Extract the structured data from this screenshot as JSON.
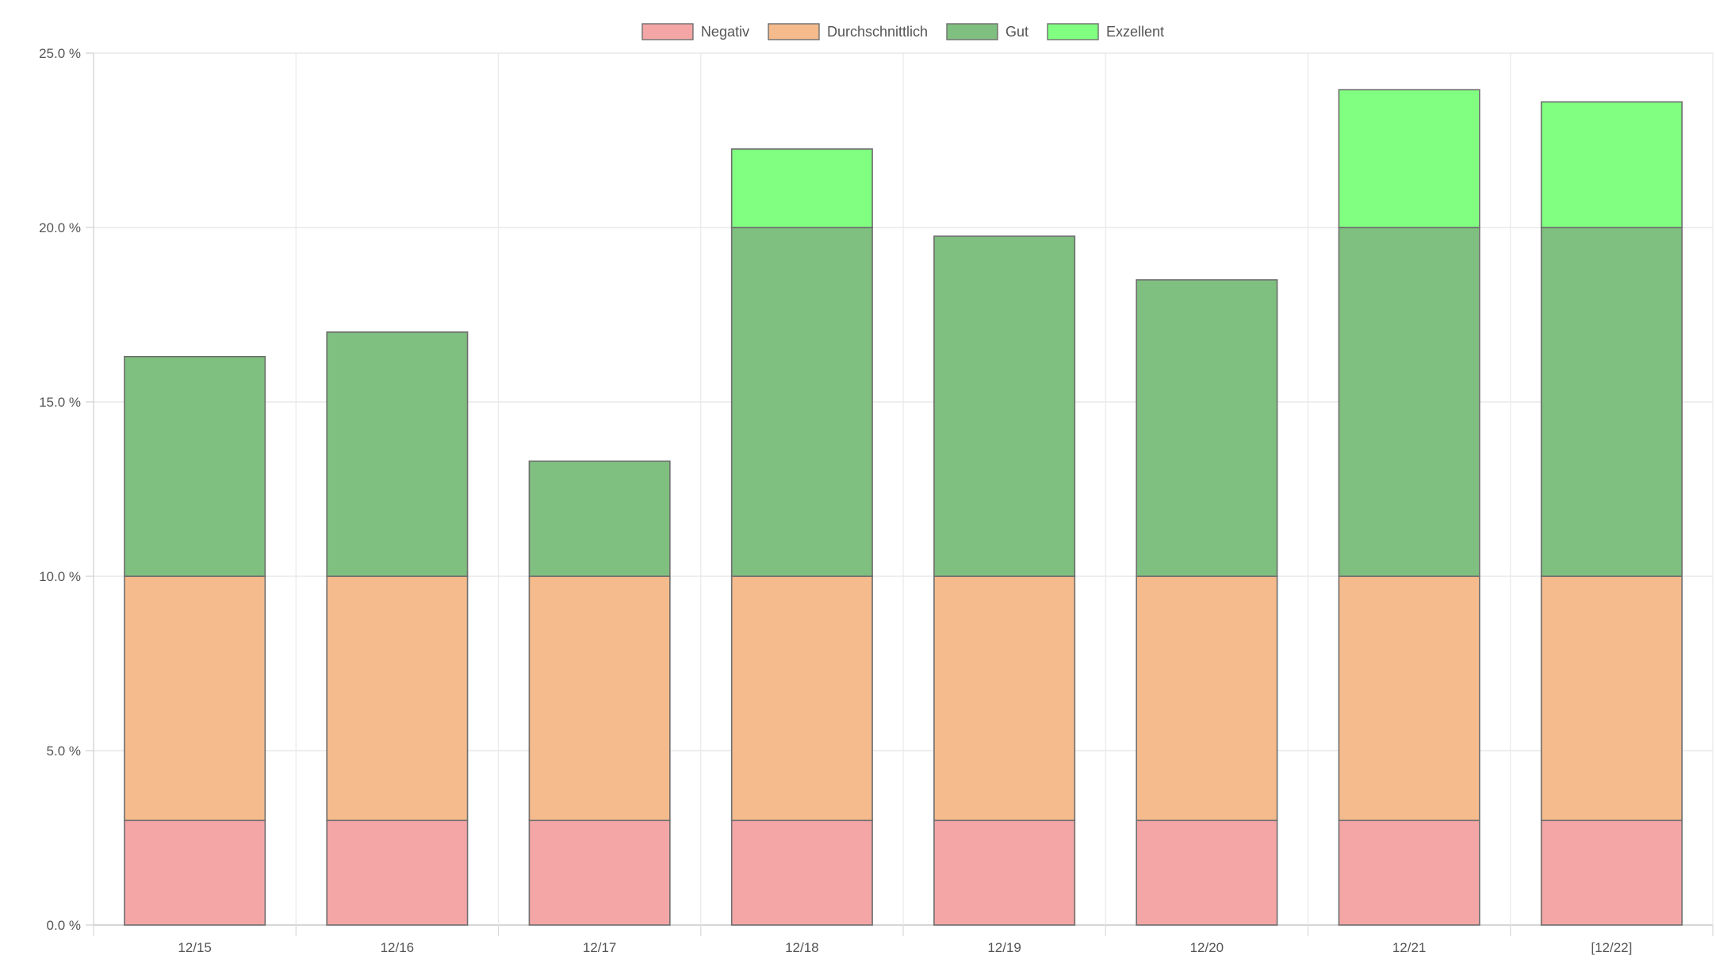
{
  "chart_data": {
    "type": "bar",
    "stacked": true,
    "categories": [
      "12/15",
      "12/16",
      "12/17",
      "12/18",
      "12/19",
      "12/20",
      "12/21",
      "[12/22]"
    ],
    "series": [
      {
        "name": "Negativ",
        "color": "#f4a6a6",
        "values": [
          3.0,
          3.0,
          3.0,
          3.0,
          3.0,
          3.0,
          3.0,
          3.0
        ]
      },
      {
        "name": "Durchschnittlich",
        "color": "#f5bb8c",
        "values": [
          7.0,
          7.0,
          7.0,
          7.0,
          7.0,
          7.0,
          7.0,
          7.0
        ]
      },
      {
        "name": "Gut",
        "color": "#7fbf7f",
        "values": [
          6.3,
          7.0,
          3.3,
          10.0,
          9.75,
          8.5,
          10.0,
          10.0
        ]
      },
      {
        "name": "Exzellent",
        "color": "#80ff80",
        "values": [
          0,
          0,
          0,
          2.25,
          0,
          0,
          3.95,
          3.6
        ]
      }
    ],
    "ylim": [
      0,
      25
    ],
    "yticks": [
      0,
      5,
      10,
      15,
      20,
      25
    ],
    "ytick_labels": [
      "0.0 %",
      "5.0 %",
      "10.0 %",
      "15.0 %",
      "20.0 %",
      "25.0 %"
    ],
    "grid": true,
    "legend_position": "top-center"
  }
}
